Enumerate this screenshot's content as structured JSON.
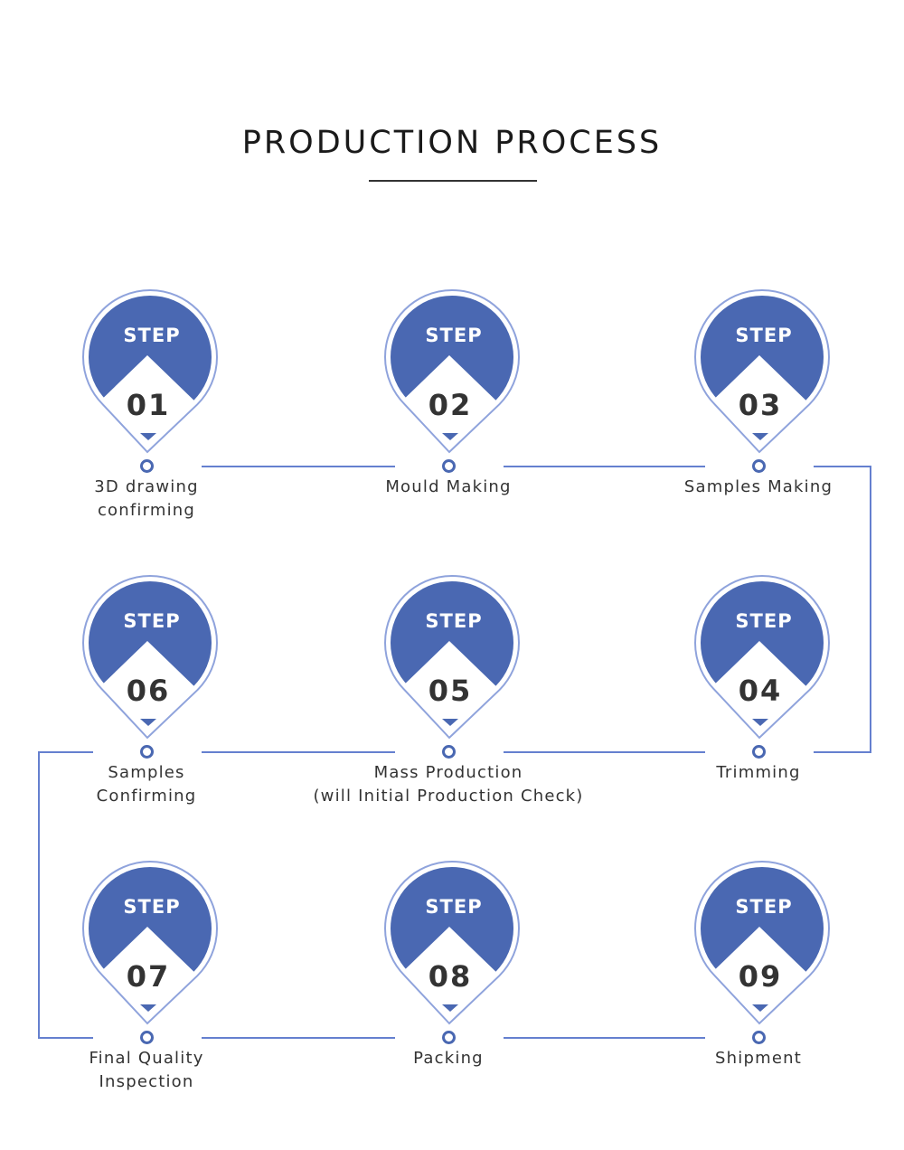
{
  "title": "PRODUCTION PROCESS",
  "step_word": "STEP",
  "colors": {
    "accent": "#4a68b2",
    "line": "#6580cf"
  },
  "steps": [
    {
      "number": "01",
      "label": [
        "3D drawing",
        "confirming"
      ]
    },
    {
      "number": "02",
      "label": [
        "Mould Making"
      ]
    },
    {
      "number": "03",
      "label": [
        "Samples Making"
      ]
    },
    {
      "number": "04",
      "label": [
        "Trimming"
      ]
    },
    {
      "number": "05",
      "label": [
        "Mass Production",
        "(will Initial Production Check)"
      ]
    },
    {
      "number": "06",
      "label": [
        "Samples",
        "Confirming"
      ]
    },
    {
      "number": "07",
      "label": [
        "Final Quality",
        "Inspection"
      ]
    },
    {
      "number": "08",
      "label": [
        "Packing"
      ]
    },
    {
      "number": "09",
      "label": [
        "Shipment"
      ]
    }
  ]
}
